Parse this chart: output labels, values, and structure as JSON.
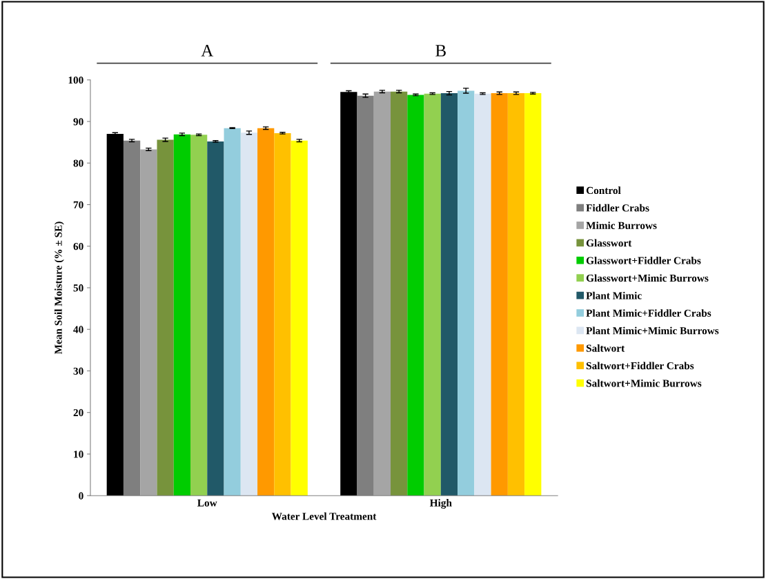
{
  "chart_data": {
    "type": "bar",
    "xlabel": "Water Level Treatment",
    "ylabel": "Mean Soil Moisture (% ± SE)",
    "categories": [
      "Low",
      "High"
    ],
    "series": [
      {
        "name": "Control",
        "color": "#000000",
        "values": [
          87.0,
          97.1
        ],
        "errors": [
          0.3,
          0.3
        ]
      },
      {
        "name": "Fiddler Crabs",
        "color": "#7f7f7f",
        "values": [
          85.4,
          96.2
        ],
        "errors": [
          0.3,
          0.4
        ]
      },
      {
        "name": "Mimic Burrows",
        "color": "#a5a5a5",
        "values": [
          83.3,
          97.2
        ],
        "errors": [
          0.3,
          0.3
        ]
      },
      {
        "name": "Glasswort",
        "color": "#77933c",
        "values": [
          85.6,
          97.2
        ],
        "errors": [
          0.4,
          0.3
        ]
      },
      {
        "name": "Glasswort+Fiddler Crabs",
        "color": "#00cc00",
        "values": [
          86.9,
          96.4
        ],
        "errors": [
          0.3,
          0.2
        ]
      },
      {
        "name": "Glasswort+Mimic Burrows",
        "color": "#92d050",
        "values": [
          86.8,
          96.7
        ],
        "errors": [
          0.2,
          0.2
        ]
      },
      {
        "name": "Plant Mimic",
        "color": "#215968",
        "values": [
          85.2,
          96.8
        ],
        "errors": [
          0.2,
          0.4
        ]
      },
      {
        "name": "Plant Mimic+Fiddler Crabs",
        "color": "#93cddd",
        "values": [
          88.4,
          97.4
        ],
        "errors": [
          0.1,
          0.6
        ]
      },
      {
        "name": "Plant Mimic+Mimic Burrows",
        "color": "#dce6f2",
        "values": [
          87.3,
          96.7
        ],
        "errors": [
          0.4,
          0.2
        ]
      },
      {
        "name": "Saltwort",
        "color": "#ff9900",
        "values": [
          88.4,
          96.8
        ],
        "errors": [
          0.3,
          0.3
        ]
      },
      {
        "name": "Saltwort+Fiddler Crabs",
        "color": "#ffc000",
        "values": [
          87.2,
          96.8
        ],
        "errors": [
          0.2,
          0.3
        ]
      },
      {
        "name": "Saltwort+Mimic Burrows",
        "color": "#ffff00",
        "values": [
          85.4,
          96.8
        ],
        "errors": [
          0.3,
          0.2
        ]
      }
    ],
    "ylim": [
      0,
      100
    ],
    "yticks": [
      0,
      10,
      20,
      30,
      40,
      50,
      60,
      70,
      80,
      90,
      100
    ],
    "annotations": [
      "A",
      "B"
    ],
    "legend": "right",
    "grid": false
  }
}
